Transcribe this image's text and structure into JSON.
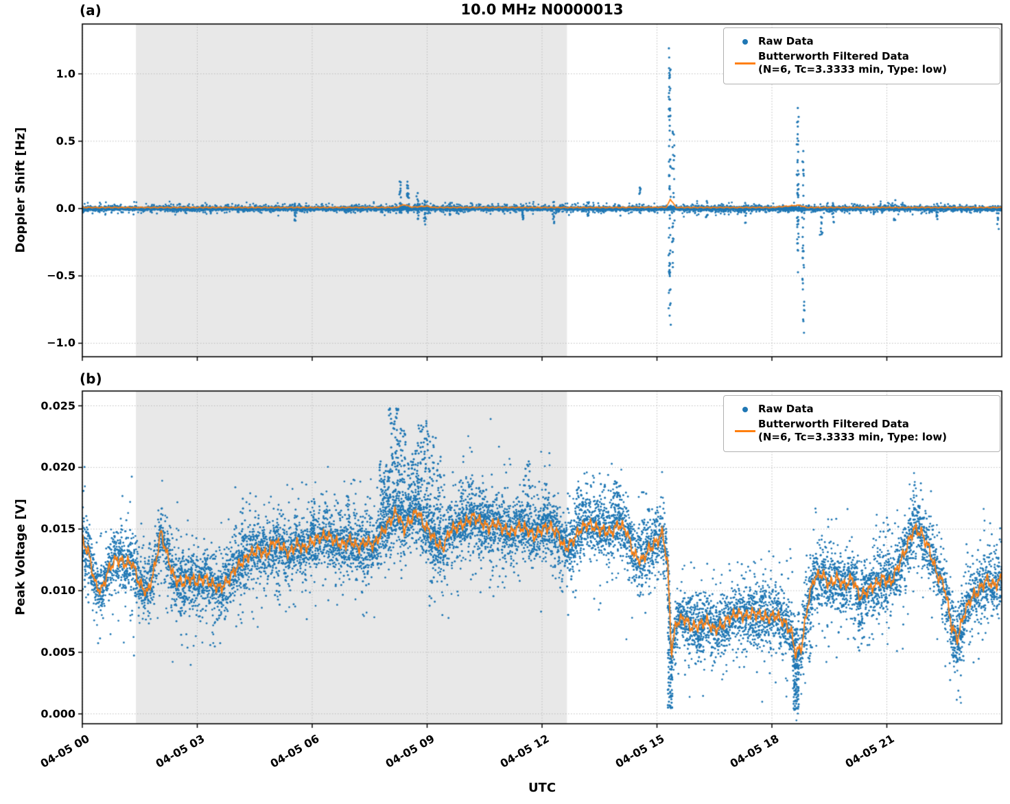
{
  "figure": {
    "title": "10.0 MHz N0000013",
    "xlabel": "UTC",
    "panel_a_label": "(a)",
    "panel_b_label": "(b)",
    "legend": {
      "raw_label": "Raw Data",
      "filtered_label": "Butterworth Filtered Data",
      "filtered_sublabel": "(N=6, Tc=3.3333 min, Type: low)"
    },
    "colors": {
      "raw": "#1f77b4",
      "filtered": "#ff7f0e",
      "shading": "#e8e8e8",
      "grid": "#bbbbbb"
    }
  },
  "chart_data": [
    {
      "id": "a",
      "type": "scatter",
      "title": "(a)",
      "ylabel": "Doppler Shift [Hz]",
      "xlabel": "UTC",
      "xlim": [
        0,
        24
      ],
      "ylim": [
        -1.1,
        1.37
      ],
      "xticks": [
        0,
        3,
        6,
        9,
        12,
        15,
        18,
        21
      ],
      "xtick_labels": [
        "04-05 00",
        "04-05 03",
        "04-05 06",
        "04-05 09",
        "04-05 12",
        "04-05 15",
        "04-05 18",
        "04-05 21"
      ],
      "yticks": [
        -1.0,
        -0.5,
        0.0,
        0.5,
        1.0
      ],
      "ytick_labels": [
        "−1.0",
        "−0.5",
        "0.0",
        "0.5",
        "1.0"
      ],
      "grid": true,
      "legend_position": "upper right",
      "shaded_region": {
        "x0": 1.4,
        "x1": 12.65
      },
      "series": [
        {
          "name": "Raw Data",
          "type": "scatter",
          "color": "#1f77b4",
          "baseline": 0.0,
          "noise_sigma": 0.0065,
          "n_points": 6000,
          "halo_sigma": 0.018,
          "halo_points": 1500,
          "spike_events": [
            [
              5.55,
              -0.09,
              0.04,
              12
            ],
            [
              8.3,
              -0.06,
              0.23,
              22
            ],
            [
              8.5,
              -0.05,
              0.26,
              18
            ],
            [
              8.75,
              -0.08,
              0.12,
              14
            ],
            [
              8.95,
              -0.13,
              0.08,
              14
            ],
            [
              9.6,
              -0.06,
              0.05,
              10
            ],
            [
              11.5,
              -0.09,
              0.04,
              10
            ],
            [
              12.3,
              -0.11,
              0.05,
              10
            ],
            [
              13.2,
              -0.07,
              0.05,
              8
            ],
            [
              14.55,
              -0.06,
              0.16,
              10
            ],
            [
              15.33,
              -0.9,
              1.24,
              70
            ],
            [
              15.42,
              -0.45,
              0.6,
              25
            ],
            [
              16.3,
              -0.07,
              0.06,
              8
            ],
            [
              17.3,
              -0.12,
              0.06,
              8
            ],
            [
              18.68,
              -0.5,
              0.75,
              45
            ],
            [
              18.82,
              -0.97,
              0.45,
              35
            ],
            [
              19.3,
              -0.22,
              0.08,
              10
            ],
            [
              19.6,
              -0.12,
              0.06,
              8
            ],
            [
              21.2,
              -0.09,
              0.07,
              8
            ],
            [
              22.3,
              -0.08,
              0.05,
              8
            ],
            [
              23.9,
              -0.16,
              0.04,
              10
            ]
          ]
        },
        {
          "name": "Butterworth Filtered Data (N=6, Tc=3.3333 min, Type: low)",
          "type": "line",
          "color": "#ff7f0e",
          "points": [
            [
              0,
              0.008
            ],
            [
              2,
              0.008
            ],
            [
              4,
              0.008
            ],
            [
              6,
              0.008
            ],
            [
              8.2,
              0.008
            ],
            [
              8.4,
              0.03
            ],
            [
              8.6,
              0.01
            ],
            [
              9.0,
              0.018
            ],
            [
              9.15,
              0.008
            ],
            [
              10,
              0.008
            ],
            [
              12,
              0.008
            ],
            [
              14,
              0.008
            ],
            [
              15.25,
              0.01
            ],
            [
              15.35,
              0.07
            ],
            [
              15.5,
              0.008
            ],
            [
              16,
              0.008
            ],
            [
              18,
              0.008
            ],
            [
              18.7,
              0.025
            ],
            [
              18.9,
              0.008
            ],
            [
              20,
              0.008
            ],
            [
              22,
              0.008
            ],
            [
              24,
              0.008
            ]
          ]
        }
      ]
    },
    {
      "id": "b",
      "type": "scatter",
      "title": "(b)",
      "ylabel": "Peak Voltage [V]",
      "xlabel": "UTC",
      "xlim": [
        0,
        24
      ],
      "ylim": [
        -0.0008,
        0.0262
      ],
      "xticks": [
        0,
        3,
        6,
        9,
        12,
        15,
        18,
        21
      ],
      "xtick_labels": [
        "04-05 00",
        "04-05 03",
        "04-05 06",
        "04-05 09",
        "04-05 12",
        "04-05 15",
        "04-05 18",
        "04-05 21"
      ],
      "yticks": [
        0.0,
        0.005,
        0.01,
        0.015,
        0.02,
        0.025
      ],
      "ytick_labels": [
        "0.000",
        "0.005",
        "0.010",
        "0.015",
        "0.020",
        "0.025"
      ],
      "grid": true,
      "legend_position": "upper right",
      "shaded_region": {
        "x0": 1.4,
        "x1": 12.65
      },
      "series": [
        {
          "name": "Raw Data",
          "type": "scatter",
          "color": "#1f77b4",
          "baseline_follows_filtered": true,
          "noise_sigma": 0.0011,
          "n_points": 9000,
          "halo_sigma": 0.0024,
          "halo_points": 1600,
          "bursts_up": [
            [
              7.75,
              8.0,
              0.0205,
              50
            ],
            [
              8.0,
              8.25,
              0.0248,
              70
            ],
            [
              8.25,
              8.45,
              0.0232,
              50
            ],
            [
              8.5,
              8.75,
              0.0215,
              45
            ],
            [
              8.75,
              9.0,
              0.0238,
              55
            ],
            [
              9.0,
              9.2,
              0.023,
              45
            ],
            [
              9.2,
              9.45,
              0.0225,
              35
            ],
            [
              9.8,
              10.2,
              0.019,
              30
            ],
            [
              10.35,
              10.55,
              0.0186,
              25
            ],
            [
              11.5,
              11.7,
              0.0206,
              25
            ],
            [
              12.0,
              12.2,
              0.0182,
              20
            ],
            [
              12.9,
              13.1,
              0.0186,
              20
            ],
            [
              13.45,
              13.65,
              0.0187,
              20
            ],
            [
              13.85,
              14.05,
              0.0192,
              25
            ],
            [
              14.6,
              14.8,
              0.0181,
              15
            ],
            [
              4.0,
              4.2,
              0.0178,
              15
            ],
            [
              5.9,
              6.1,
              0.0175,
              12
            ],
            [
              6.9,
              7.1,
              0.0178,
              12
            ],
            [
              20.9,
              21.1,
              0.0168,
              10
            ],
            [
              21.6,
              21.9,
              0.017,
              15
            ]
          ],
          "bursts_down": [
            [
              15.28,
              15.4,
              0.0003,
              90
            ],
            [
              18.55,
              18.7,
              0.0003,
              90
            ],
            [
              18.95,
              19.05,
              0.004,
              20
            ],
            [
              22.7,
              23.0,
              0.0042,
              40
            ],
            [
              20.25,
              20.4,
              0.005,
              15
            ],
            [
              16.0,
              16.2,
              0.004,
              18
            ],
            [
              17.45,
              17.6,
              0.0052,
              10
            ],
            [
              0.05,
              0.2,
              0.0085,
              10
            ],
            [
              2.5,
              2.7,
              0.0075,
              12
            ],
            [
              5.0,
              5.15,
              0.0085,
              10
            ],
            [
              7.3,
              7.45,
              0.009,
              10
            ],
            [
              9.05,
              9.2,
              0.0085,
              15
            ],
            [
              10.6,
              10.75,
              0.0095,
              10
            ],
            [
              12.75,
              12.9,
              0.0095,
              10
            ]
          ]
        },
        {
          "name": "Butterworth Filtered Data (N=6, Tc=3.3333 min, Type: low)",
          "type": "line",
          "color": "#ff7f0e",
          "points": [
            [
              0,
              0.014
            ],
            [
              0.15,
              0.0132
            ],
            [
              0.35,
              0.0104
            ],
            [
              0.5,
              0.01
            ],
            [
              0.7,
              0.0118
            ],
            [
              0.9,
              0.0126
            ],
            [
              1.1,
              0.0122
            ],
            [
              1.3,
              0.0123
            ],
            [
              1.5,
              0.0105
            ],
            [
              1.7,
              0.0098
            ],
            [
              1.9,
              0.012
            ],
            [
              2.05,
              0.0148
            ],
            [
              2.2,
              0.013
            ],
            [
              2.4,
              0.011
            ],
            [
              2.6,
              0.0106
            ],
            [
              2.8,
              0.011
            ],
            [
              3.0,
              0.0107
            ],
            [
              3.2,
              0.011
            ],
            [
              3.4,
              0.0105
            ],
            [
              3.6,
              0.0102
            ],
            [
              3.8,
              0.0108
            ],
            [
              4.0,
              0.0118
            ],
            [
              4.2,
              0.0124
            ],
            [
              4.4,
              0.013
            ],
            [
              4.6,
              0.0133
            ],
            [
              4.8,
              0.0129
            ],
            [
              5.0,
              0.014
            ],
            [
              5.2,
              0.0136
            ],
            [
              5.4,
              0.013
            ],
            [
              5.6,
              0.0138
            ],
            [
              5.8,
              0.0134
            ],
            [
              6.0,
              0.014
            ],
            [
              6.2,
              0.0143
            ],
            [
              6.4,
              0.0145
            ],
            [
              6.6,
              0.014
            ],
            [
              6.8,
              0.0137
            ],
            [
              7.0,
              0.0141
            ],
            [
              7.2,
              0.0135
            ],
            [
              7.4,
              0.014
            ],
            [
              7.6,
              0.0137
            ],
            [
              7.8,
              0.0146
            ],
            [
              8.0,
              0.0155
            ],
            [
              8.2,
              0.0164
            ],
            [
              8.4,
              0.015
            ],
            [
              8.6,
              0.0159
            ],
            [
              8.75,
              0.0165
            ],
            [
              8.9,
              0.0154
            ],
            [
              9.05,
              0.0149
            ],
            [
              9.2,
              0.0141
            ],
            [
              9.4,
              0.0134
            ],
            [
              9.6,
              0.0149
            ],
            [
              9.8,
              0.0152
            ],
            [
              10.0,
              0.0155
            ],
            [
              10.2,
              0.016
            ],
            [
              10.4,
              0.0156
            ],
            [
              10.6,
              0.0151
            ],
            [
              10.8,
              0.0155
            ],
            [
              11.0,
              0.015
            ],
            [
              11.2,
              0.0147
            ],
            [
              11.4,
              0.0152
            ],
            [
              11.6,
              0.015
            ],
            [
              11.8,
              0.0144
            ],
            [
              12.0,
              0.015
            ],
            [
              12.2,
              0.0152
            ],
            [
              12.4,
              0.0147
            ],
            [
              12.6,
              0.0134
            ],
            [
              12.8,
              0.014
            ],
            [
              13.0,
              0.015
            ],
            [
              13.2,
              0.0154
            ],
            [
              13.4,
              0.0151
            ],
            [
              13.6,
              0.0149
            ],
            [
              13.8,
              0.0147
            ],
            [
              14.0,
              0.0154
            ],
            [
              14.2,
              0.0149
            ],
            [
              14.4,
              0.0129
            ],
            [
              14.6,
              0.0124
            ],
            [
              14.8,
              0.0134
            ],
            [
              15.0,
              0.014
            ],
            [
              15.15,
              0.0147
            ],
            [
              15.28,
              0.012
            ],
            [
              15.38,
              0.005
            ],
            [
              15.5,
              0.0074
            ],
            [
              15.7,
              0.0078
            ],
            [
              15.9,
              0.007
            ],
            [
              16.1,
              0.0072
            ],
            [
              16.3,
              0.0075
            ],
            [
              16.5,
              0.0068
            ],
            [
              16.7,
              0.0072
            ],
            [
              16.9,
              0.0078
            ],
            [
              17.1,
              0.0082
            ],
            [
              17.3,
              0.0079
            ],
            [
              17.5,
              0.0082
            ],
            [
              17.7,
              0.008
            ],
            [
              17.9,
              0.0078
            ],
            [
              18.1,
              0.008
            ],
            [
              18.3,
              0.0075
            ],
            [
              18.5,
              0.0067
            ],
            [
              18.62,
              0.0049
            ],
            [
              18.78,
              0.0055
            ],
            [
              18.95,
              0.0092
            ],
            [
              19.1,
              0.011
            ],
            [
              19.3,
              0.0114
            ],
            [
              19.5,
              0.0105
            ],
            [
              19.7,
              0.011
            ],
            [
              19.9,
              0.0104
            ],
            [
              20.1,
              0.011
            ],
            [
              20.3,
              0.0095
            ],
            [
              20.5,
              0.01
            ],
            [
              20.7,
              0.0105
            ],
            [
              20.9,
              0.011
            ],
            [
              21.1,
              0.0106
            ],
            [
              21.3,
              0.012
            ],
            [
              21.5,
              0.0134
            ],
            [
              21.7,
              0.015
            ],
            [
              21.9,
              0.0147
            ],
            [
              22.1,
              0.0134
            ],
            [
              22.3,
              0.0114
            ],
            [
              22.5,
              0.0104
            ],
            [
              22.7,
              0.007
            ],
            [
              22.85,
              0.0061
            ],
            [
              23.0,
              0.008
            ],
            [
              23.2,
              0.0094
            ],
            [
              23.4,
              0.01
            ],
            [
              23.6,
              0.0109
            ],
            [
              23.8,
              0.0104
            ],
            [
              24.0,
              0.011
            ]
          ]
        }
      ]
    }
  ]
}
